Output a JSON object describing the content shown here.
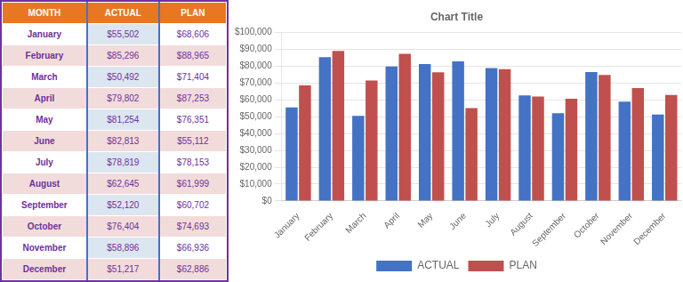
{
  "chart_data": [
    {
      "type": "table",
      "xlabel": "MONTH",
      "categories": [
        "January",
        "February",
        "March",
        "April",
        "May",
        "June",
        "July",
        "August",
        "September",
        "October",
        "November",
        "December"
      ],
      "series": [
        {
          "name": "ACTUAL",
          "values": [
            55502,
            85296,
            50492,
            79802,
            81254,
            82813,
            78819,
            62645,
            52120,
            76404,
            58896,
            51217
          ],
          "value_labels": [
            "$55,502",
            "$85,296",
            "$50,492",
            "$79,802",
            "$81,254",
            "$82,813",
            "$78,819",
            "$62,645",
            "$52,120",
            "$76,404",
            "$58,896",
            "$51,217"
          ]
        },
        {
          "name": "PLAN",
          "values": [
            68606,
            88965,
            71404,
            87253,
            76351,
            55112,
            78153,
            61999,
            60702,
            74693,
            66936,
            62886
          ],
          "value_labels": [
            "$68,606",
            "$88,965",
            "$71,404",
            "$87,253",
            "$76,351",
            "$55,112",
            "$78,153",
            "$61,999",
            "$60,702",
            "$74,693",
            "$66,936",
            "$62,886"
          ]
        }
      ]
    },
    {
      "type": "bar",
      "title": "Chart Title",
      "categories": [
        "January",
        "February",
        "March",
        "April",
        "May",
        "June",
        "July",
        "August",
        "September",
        "October",
        "November",
        "December"
      ],
      "series": [
        {
          "name": "ACTUAL",
          "color": "#4472C4",
          "values": [
            55502,
            85296,
            50492,
            79802,
            81254,
            82813,
            78819,
            62645,
            52120,
            76404,
            58896,
            51217
          ]
        },
        {
          "name": "PLAN",
          "color": "#C0504D",
          "values": [
            68606,
            88965,
            71404,
            87253,
            76351,
            55112,
            78153,
            61999,
            60702,
            74693,
            66936,
            62886
          ]
        }
      ],
      "ylim": [
        0,
        100000
      ],
      "yticks": [
        {
          "value": 0,
          "label": "$0"
        },
        {
          "value": 10000,
          "label": "$10,000"
        },
        {
          "value": 20000,
          "label": "$20,000"
        },
        {
          "value": 30000,
          "label": "$30,000"
        },
        {
          "value": 40000,
          "label": "$40,000"
        },
        {
          "value": 50000,
          "label": "$50,000"
        },
        {
          "value": 60000,
          "label": "$60,000"
        },
        {
          "value": 70000,
          "label": "$70,000"
        },
        {
          "value": 80000,
          "label": "$80,000"
        },
        {
          "value": 90000,
          "label": "$90,000"
        },
        {
          "value": 100000,
          "label": "$100,000"
        }
      ],
      "grid": true,
      "legend": "bottom"
    }
  ]
}
